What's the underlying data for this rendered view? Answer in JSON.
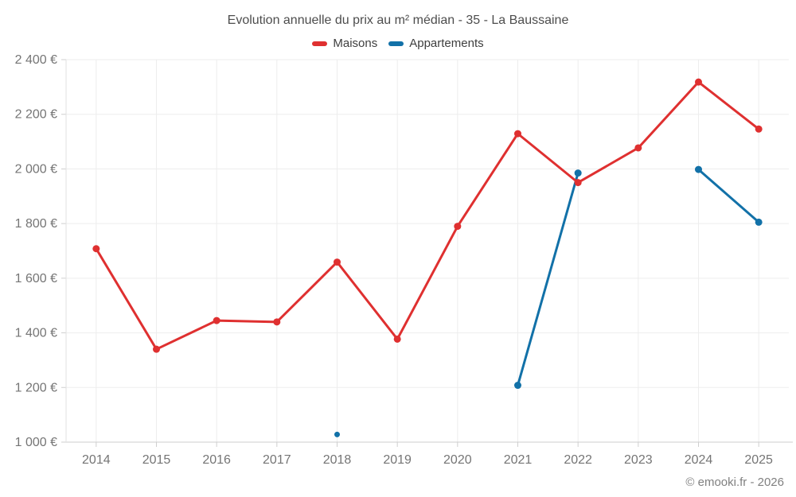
{
  "header": {
    "title": "Evolution annuelle du prix au m² médian - 35 - La Baussaine"
  },
  "legend": {
    "items": [
      {
        "label": "Maisons",
        "color": "#df3030"
      },
      {
        "label": "Appartements",
        "color": "#1271a8"
      }
    ]
  },
  "footer": {
    "credit": "© emooki.fr - 2026"
  },
  "chart_data": {
    "type": "line",
    "title": "Evolution annuelle du prix au m² médian - 35 - La Baussaine",
    "x": [
      "2014",
      "2015",
      "2016",
      "2017",
      "2018",
      "2019",
      "2020",
      "2021",
      "2022",
      "2023",
      "2024",
      "2025"
    ],
    "series": [
      {
        "name": "Maisons",
        "color": "#df3030",
        "values": [
          1708,
          1340,
          1445,
          1440,
          1659,
          1377,
          1790,
          2129,
          1950,
          2077,
          2318,
          2146
        ]
      },
      {
        "name": "Appartements",
        "color": "#1271a8",
        "values": [
          null,
          null,
          null,
          null,
          1028,
          null,
          null,
          1208,
          1985,
          null,
          1998,
          1805
        ]
      }
    ],
    "y_axis": {
      "min": 1000,
      "max": 2400,
      "step": 200,
      "tick_labels": [
        "1 000 €",
        "1 200 €",
        "1 400 €",
        "1 600 €",
        "1 800 €",
        "2 000 €",
        "2 200 €",
        "2 400 €"
      ]
    },
    "layout": {
      "grid": true,
      "legend_position": "top",
      "line_width": 3,
      "marker_radius": 4.5,
      "isolated_marker_radius": 3.5,
      "grid_color": "#ededed",
      "axis_color": "#cccccc",
      "tick_color": "#cfcfcf",
      "tick_label_color": "#757575"
    }
  }
}
